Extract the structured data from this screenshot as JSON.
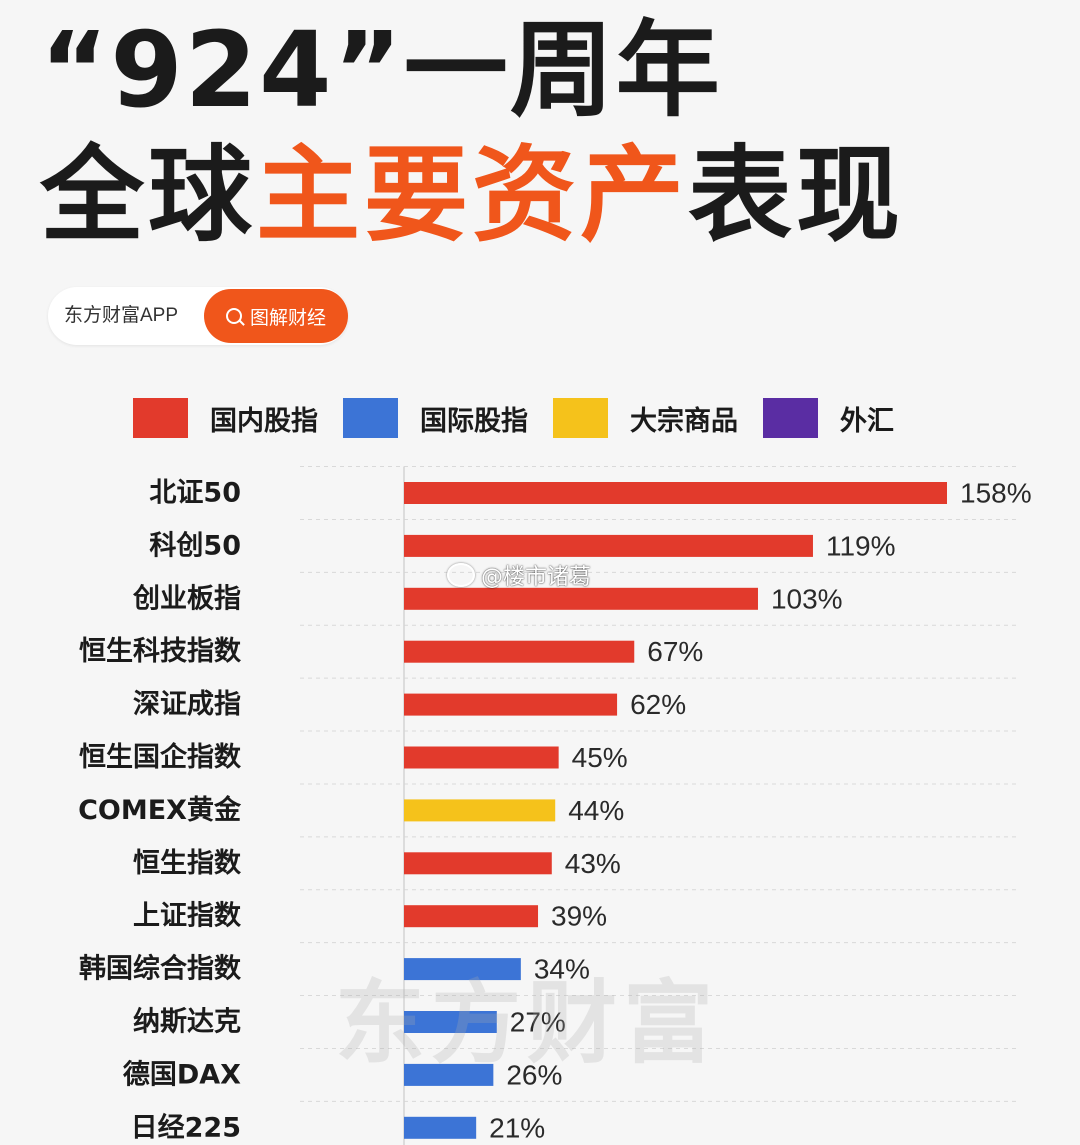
{
  "header": {
    "line1": "“924”一周年",
    "line2_prefix": "全球",
    "line2_highlight": "主要资产",
    "line2_suffix": "表现"
  },
  "brand": {
    "name": "东方财富APP",
    "tag": "图解财经"
  },
  "legend": [
    {
      "label": "国内股指",
      "color": "#e23a2c"
    },
    {
      "label": "国际股指",
      "color": "#3c74d6"
    },
    {
      "label": "大宗商品",
      "color": "#f5c21b"
    },
    {
      "label": "外汇",
      "color": "#5a2da3"
    }
  ],
  "watermarks": {
    "background": "东方财富",
    "weibo": "@楼市诸葛"
  },
  "chart_data": {
    "type": "bar",
    "orientation": "horizontal",
    "categories": [
      "北证50",
      "科创50",
      "创业板指",
      "恒生科技指数",
      "深证成指",
      "恒生国企指数",
      "COMEX黄金",
      "恒生指数",
      "上证指数",
      "韩国综合指数",
      "纳斯达克",
      "德国DAX",
      "日经225"
    ],
    "values": [
      158,
      119,
      103,
      67,
      62,
      45,
      44,
      43,
      39,
      34,
      27,
      26,
      21
    ],
    "value_labels": [
      "158%",
      "119%",
      "103%",
      "67%",
      "62%",
      "45%",
      "44%",
      "43%",
      "39%",
      "34%",
      "27%",
      "26%",
      "21%"
    ],
    "groups": [
      "国内股指",
      "国内股指",
      "国内股指",
      "国内股指",
      "国内股指",
      "国内股指",
      "大宗商品",
      "国内股指",
      "国内股指",
      "国际股指",
      "国际股指",
      "国际股指",
      "国际股指"
    ],
    "unit": "%",
    "xlim": [
      0,
      158
    ],
    "grid": true,
    "legend_position": "top"
  }
}
